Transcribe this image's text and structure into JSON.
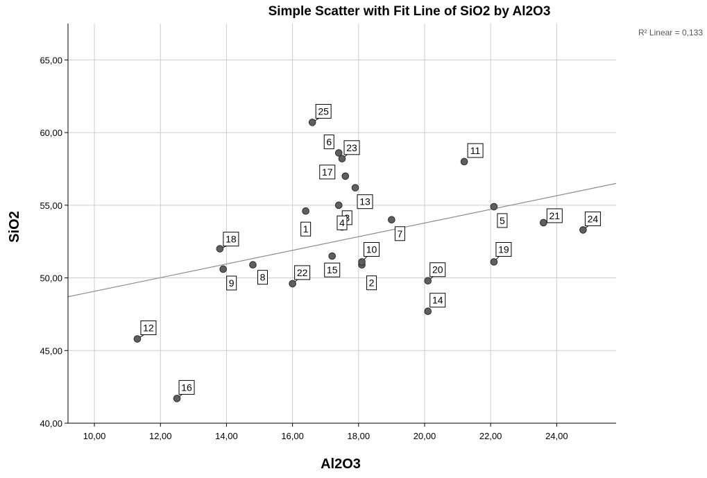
{
  "chart_data": {
    "type": "scatter",
    "title": "Simple Scatter with Fit Line of SiO2 by Al2O3",
    "xlabel": "Al2O3",
    "ylabel": "SiO2",
    "xlim": [
      9.2,
      25.8
    ],
    "ylim": [
      40,
      67.5
    ],
    "xticks": [
      10,
      12,
      14,
      16,
      18,
      20,
      22,
      24
    ],
    "yticks": [
      40,
      45,
      50,
      55,
      60,
      65
    ],
    "xtick_labels": [
      "10,00",
      "12,00",
      "14,00",
      "16,00",
      "18,00",
      "20,00",
      "22,00",
      "24,00"
    ],
    "ytick_labels": [
      "40,00",
      "45,00",
      "50,00",
      "55,00",
      "60,00",
      "65,00"
    ],
    "grid": true,
    "fit_line": {
      "type": "linear",
      "label": "R² Linear = 0,133",
      "points": [
        [
          9.2,
          48.7
        ],
        [
          25.8,
          56.5
        ]
      ]
    },
    "points": [
      {
        "label": "1",
        "x": 16.4,
        "y": 54.6
      },
      {
        "label": "2",
        "x": 18.1,
        "y": 50.9
      },
      {
        "label": "3",
        "x": 17.4,
        "y": 55.0
      },
      {
        "label": "4",
        "x": 17.5,
        "y": 53.5
      },
      {
        "label": "5",
        "x": 22.1,
        "y": 54.9
      },
      {
        "label": "6",
        "x": 17.4,
        "y": 58.6
      },
      {
        "label": "7",
        "x": 19.0,
        "y": 54.0
      },
      {
        "label": "8",
        "x": 14.8,
        "y": 50.9
      },
      {
        "label": "9",
        "x": 13.9,
        "y": 50.6
      },
      {
        "label": "10",
        "x": 18.1,
        "y": 51.1
      },
      {
        "label": "11",
        "x": 21.2,
        "y": 58.0
      },
      {
        "label": "12",
        "x": 11.3,
        "y": 45.8
      },
      {
        "label": "13",
        "x": 17.9,
        "y": 56.2
      },
      {
        "label": "14",
        "x": 20.1,
        "y": 47.7
      },
      {
        "label": "15",
        "x": 17.2,
        "y": 51.5
      },
      {
        "label": "16",
        "x": 12.5,
        "y": 41.7
      },
      {
        "label": "17",
        "x": 17.6,
        "y": 57.0
      },
      {
        "label": "18",
        "x": 13.8,
        "y": 52.0
      },
      {
        "label": "19",
        "x": 22.1,
        "y": 51.1
      },
      {
        "label": "20",
        "x": 20.1,
        "y": 49.8
      },
      {
        "label": "21",
        "x": 23.6,
        "y": 53.8
      },
      {
        "label": "22",
        "x": 16.0,
        "y": 49.6
      },
      {
        "label": "23",
        "x": 17.5,
        "y": 58.2
      },
      {
        "label": "24",
        "x": 24.8,
        "y": 53.3
      },
      {
        "label": "25",
        "x": 16.6,
        "y": 60.7
      }
    ],
    "colors": {
      "point": "#5f5f5f",
      "grid": "#cccccc",
      "fit": "#8c8c8c",
      "axis": "#000000"
    }
  }
}
